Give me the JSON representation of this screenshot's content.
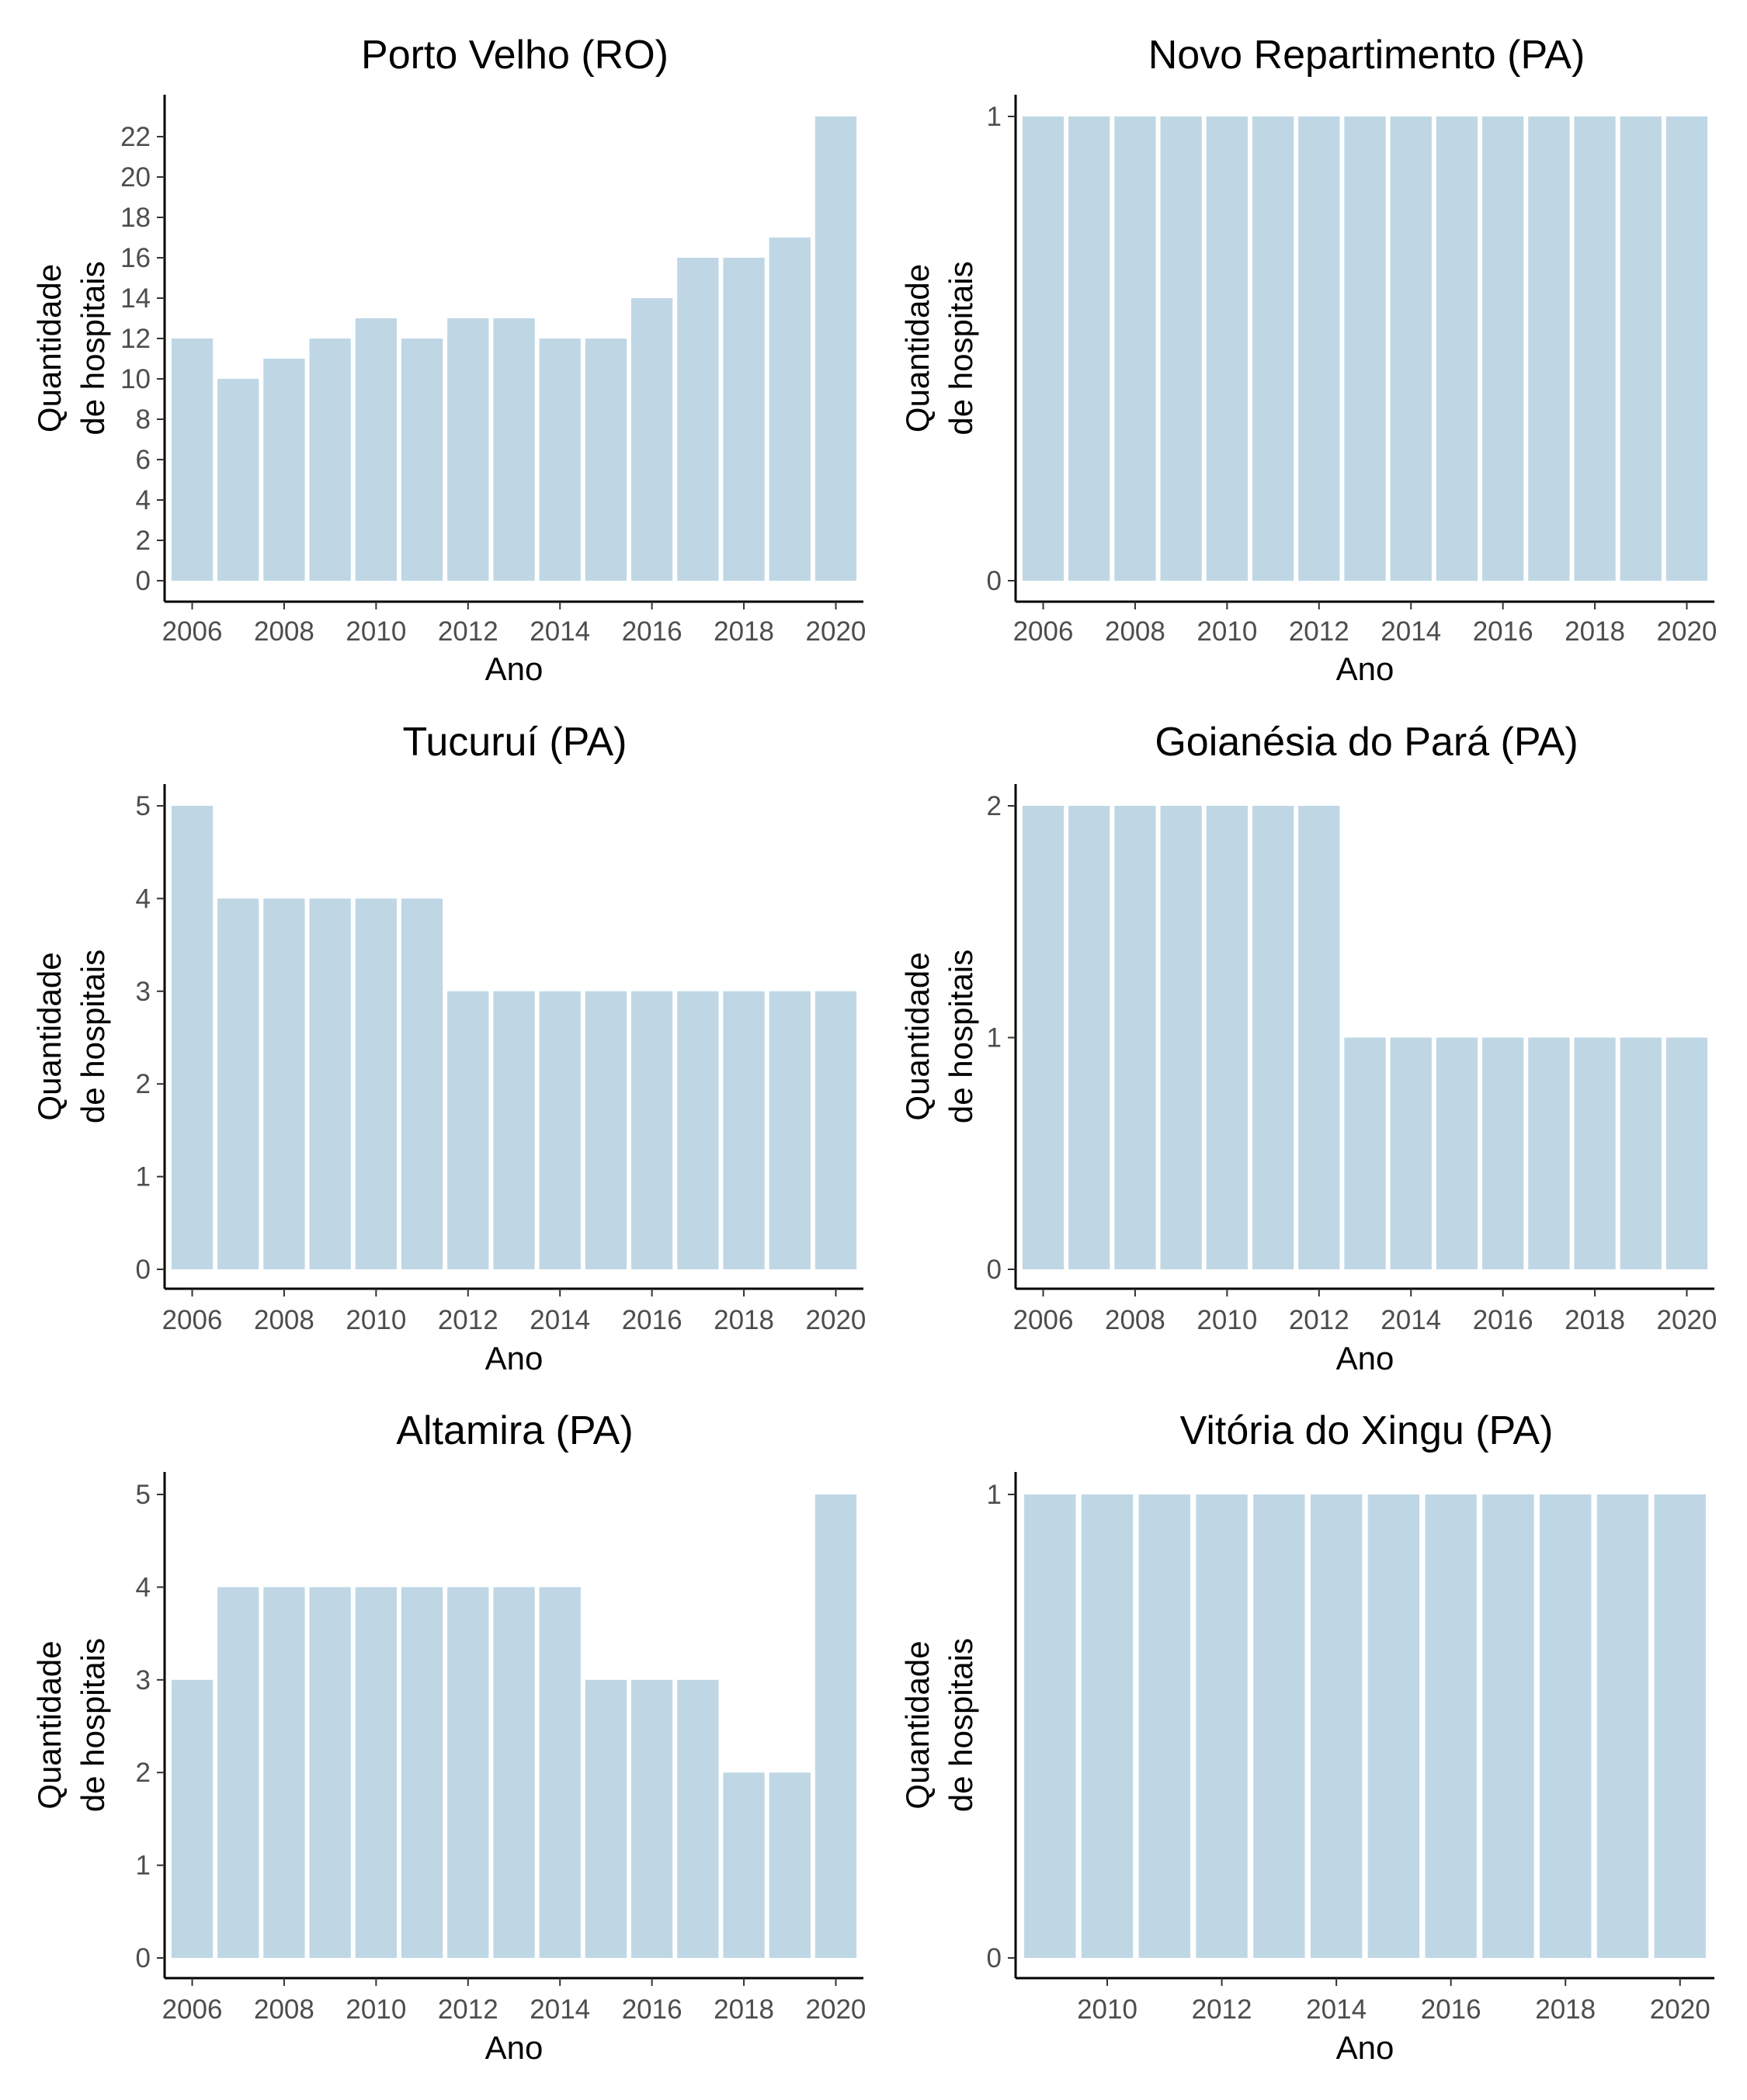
{
  "chart_data": [
    {
      "type": "bar",
      "title": "Porto Velho (RO)",
      "xlabel": "Ano",
      "ylabel": [
        "Quantidade",
        "de hospitais"
      ],
      "categories": [
        2006,
        2007,
        2008,
        2009,
        2010,
        2011,
        2012,
        2013,
        2014,
        2015,
        2016,
        2017,
        2018,
        2019,
        2020
      ],
      "values": [
        12,
        10,
        11,
        12,
        13,
        12,
        13,
        13,
        12,
        12,
        14,
        16,
        16,
        17,
        23
      ],
      "xticks": [
        2006,
        2008,
        2010,
        2012,
        2014,
        2016,
        2018,
        2020
      ],
      "yticks": [
        0,
        2,
        4,
        6,
        8,
        10,
        12,
        14,
        16,
        18,
        20,
        22
      ],
      "ylim": [
        0,
        23
      ]
    },
    {
      "type": "bar",
      "title": "Novo Repartimento (PA)",
      "xlabel": "Ano",
      "ylabel": [
        "Quantidade",
        "de hospitais"
      ],
      "categories": [
        2006,
        2007,
        2008,
        2009,
        2010,
        2011,
        2012,
        2013,
        2014,
        2015,
        2016,
        2017,
        2018,
        2019,
        2020
      ],
      "values": [
        1,
        1,
        1,
        1,
        1,
        1,
        1,
        1,
        1,
        1,
        1,
        1,
        1,
        1,
        1
      ],
      "xticks": [
        2006,
        2008,
        2010,
        2012,
        2014,
        2016,
        2018,
        2020
      ],
      "yticks": [
        0,
        1
      ],
      "ylim": [
        0,
        1
      ]
    },
    {
      "type": "bar",
      "title": "Tucuruí (PA)",
      "xlabel": "Ano",
      "ylabel": [
        "Quantidade",
        "de hospitais"
      ],
      "categories": [
        2006,
        2007,
        2008,
        2009,
        2010,
        2011,
        2012,
        2013,
        2014,
        2015,
        2016,
        2017,
        2018,
        2019,
        2020
      ],
      "values": [
        5,
        4,
        4,
        4,
        4,
        4,
        3,
        3,
        3,
        3,
        3,
        3,
        3,
        3,
        3
      ],
      "xticks": [
        2006,
        2008,
        2010,
        2012,
        2014,
        2016,
        2018,
        2020
      ],
      "yticks": [
        0,
        1,
        2,
        3,
        4,
        5
      ],
      "ylim": [
        0,
        5
      ]
    },
    {
      "type": "bar",
      "title": "Goianésia do Pará (PA)",
      "xlabel": "Ano",
      "ylabel": [
        "Quantidade",
        "de hospitais"
      ],
      "categories": [
        2006,
        2007,
        2008,
        2009,
        2010,
        2011,
        2012,
        2013,
        2014,
        2015,
        2016,
        2017,
        2018,
        2019,
        2020
      ],
      "values": [
        2,
        2,
        2,
        2,
        2,
        2,
        2,
        1,
        1,
        1,
        1,
        1,
        1,
        1,
        1
      ],
      "xticks": [
        2006,
        2008,
        2010,
        2012,
        2014,
        2016,
        2018,
        2020
      ],
      "yticks": [
        0,
        1,
        2
      ],
      "ylim": [
        0,
        2
      ]
    },
    {
      "type": "bar",
      "title": "Altamira (PA)",
      "xlabel": "Ano",
      "ylabel": [
        "Quantidade",
        "de hospitais"
      ],
      "categories": [
        2006,
        2007,
        2008,
        2009,
        2010,
        2011,
        2012,
        2013,
        2014,
        2015,
        2016,
        2017,
        2018,
        2019,
        2020
      ],
      "values": [
        3,
        4,
        4,
        4,
        4,
        4,
        4,
        4,
        4,
        3,
        3,
        3,
        2,
        2,
        5
      ],
      "xticks": [
        2006,
        2008,
        2010,
        2012,
        2014,
        2016,
        2018,
        2020
      ],
      "yticks": [
        0,
        1,
        2,
        3,
        4,
        5
      ],
      "ylim": [
        0,
        5
      ]
    },
    {
      "type": "bar",
      "title": "Vitória do Xingu (PA)",
      "xlabel": "Ano",
      "ylabel": [
        "Quantidade",
        "de hospitais"
      ],
      "categories": [
        2009,
        2010,
        2011,
        2012,
        2013,
        2014,
        2015,
        2016,
        2017,
        2018,
        2019,
        2020
      ],
      "values": [
        1,
        1,
        1,
        1,
        1,
        1,
        1,
        1,
        1,
        1,
        1,
        1
      ],
      "xticks": [
        2010,
        2012,
        2014,
        2016,
        2018,
        2020
      ],
      "yticks": [
        0,
        1
      ],
      "ylim": [
        0,
        1
      ]
    }
  ],
  "colors": {
    "bar": "#bfd7e5",
    "axis": "#000000",
    "tick_text": "#4d4d4d"
  }
}
